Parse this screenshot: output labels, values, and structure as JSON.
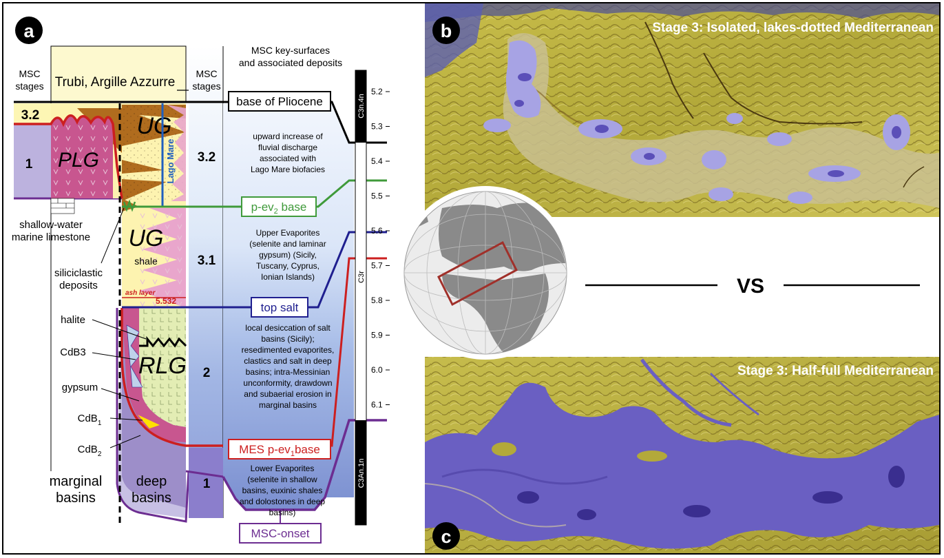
{
  "panel_a": {
    "badge": "a",
    "msc_stages_left": [
      "MSC",
      "stages"
    ],
    "trubi_label": "Trubi, Argille Azzurre",
    "msc_stages_mid": [
      "MSC",
      "stages"
    ],
    "key_surfaces_header": [
      "MSC key-surfaces",
      "and associated deposits"
    ],
    "stage_left": {
      "s32": "3.2",
      "s1": "1"
    },
    "units": {
      "plg": "PLG",
      "ug_upper": "UG",
      "ug_lower": "UG",
      "rlg": "RLG",
      "shale": "shale",
      "lago_mare": "Lago Mare"
    },
    "stage_mid": {
      "s32": "3.2",
      "s31": "3.1",
      "s2": "2",
      "s1": "1"
    },
    "left_labels": {
      "shallow_water": [
        "shallow-water",
        "marine limestone"
      ],
      "siliciclastic": [
        "siliciclastic",
        "deposits"
      ],
      "halite": "halite",
      "cdb3": "CdB3",
      "gypsum": "gypsum",
      "cdb1": "CdB",
      "cdb1_sub": "1",
      "cdb2": "CdB",
      "cdb2_sub": "2"
    },
    "ash_layer": "ash layer",
    "ash_age": "5.532",
    "bottom_labels": {
      "marginal": [
        "marginal",
        "basins"
      ],
      "deep": [
        "deep",
        "basins"
      ]
    },
    "surfaces": {
      "base_pliocene": "base of Pliocene",
      "pev2": "p-ev",
      "pev2_sub": "2",
      "pev2_rest": " base",
      "top_salt": "top salt",
      "mes": "MES p-ev",
      "mes_sub": "1",
      "mes_rest": "base",
      "onset": "MSC-onset"
    },
    "descriptions": {
      "d32": [
        "upward increase of",
        "fluvial discharge",
        "associated with",
        "Lago Mare biofacies"
      ],
      "d31": [
        "Upper Evaporites",
        "(selenite and laminar",
        "gypsum) (Sicily,",
        "Tuscany, Cyprus,",
        "Ionian Islands)"
      ],
      "d2": [
        "local desiccation of salt",
        "basins (Sicily);",
        "resedimented evaporites,",
        "clastics and salt in deep",
        "basins; intra-Messinian",
        "unconformity, drawdown",
        "and subaerial erosion in",
        "marginal basins"
      ],
      "d1": [
        "Lower Evaporites",
        "(selenite in shallow",
        "basins, euxinic shales",
        "and dolostones in deep",
        "basins)"
      ]
    },
    "chrons": {
      "top": "C3n.4n",
      "mid": "C3r",
      "bottom": "C3An.1n"
    },
    "ages": [
      "5.2",
      "5.3",
      "5.4",
      "5.5",
      "5.6",
      "5.7",
      "5.8",
      "5.9",
      "6.0",
      "6.1"
    ]
  },
  "panel_b": {
    "badge": "b",
    "title": "Stage 3: Isolated, lakes-dotted Mediterranean"
  },
  "panel_c": {
    "badge": "c",
    "title": "Stage 3: Half-full Mediterranean"
  },
  "vs_label": "VS",
  "colors": {
    "stage32_fill": "#fff7b0",
    "purple_fill": "#9d8ec9",
    "magenta_fill": "#c8568f",
    "brown_fill": "#b06c1e",
    "salt_fill": "#e3edb4",
    "blue_band": "#b6c8ea",
    "pliocene_line": "#000000",
    "pev2_line": "#3f9a3a",
    "top_salt_line": "#1f1f8f",
    "mes_line": "#cc1f1f",
    "onset_line": "#6c2d91",
    "lago_mare_line": "#1f5fbf",
    "map_land": "#b8ac3a",
    "map_water": "#6a5fc2",
    "map_lake": "#a7a3e4"
  }
}
